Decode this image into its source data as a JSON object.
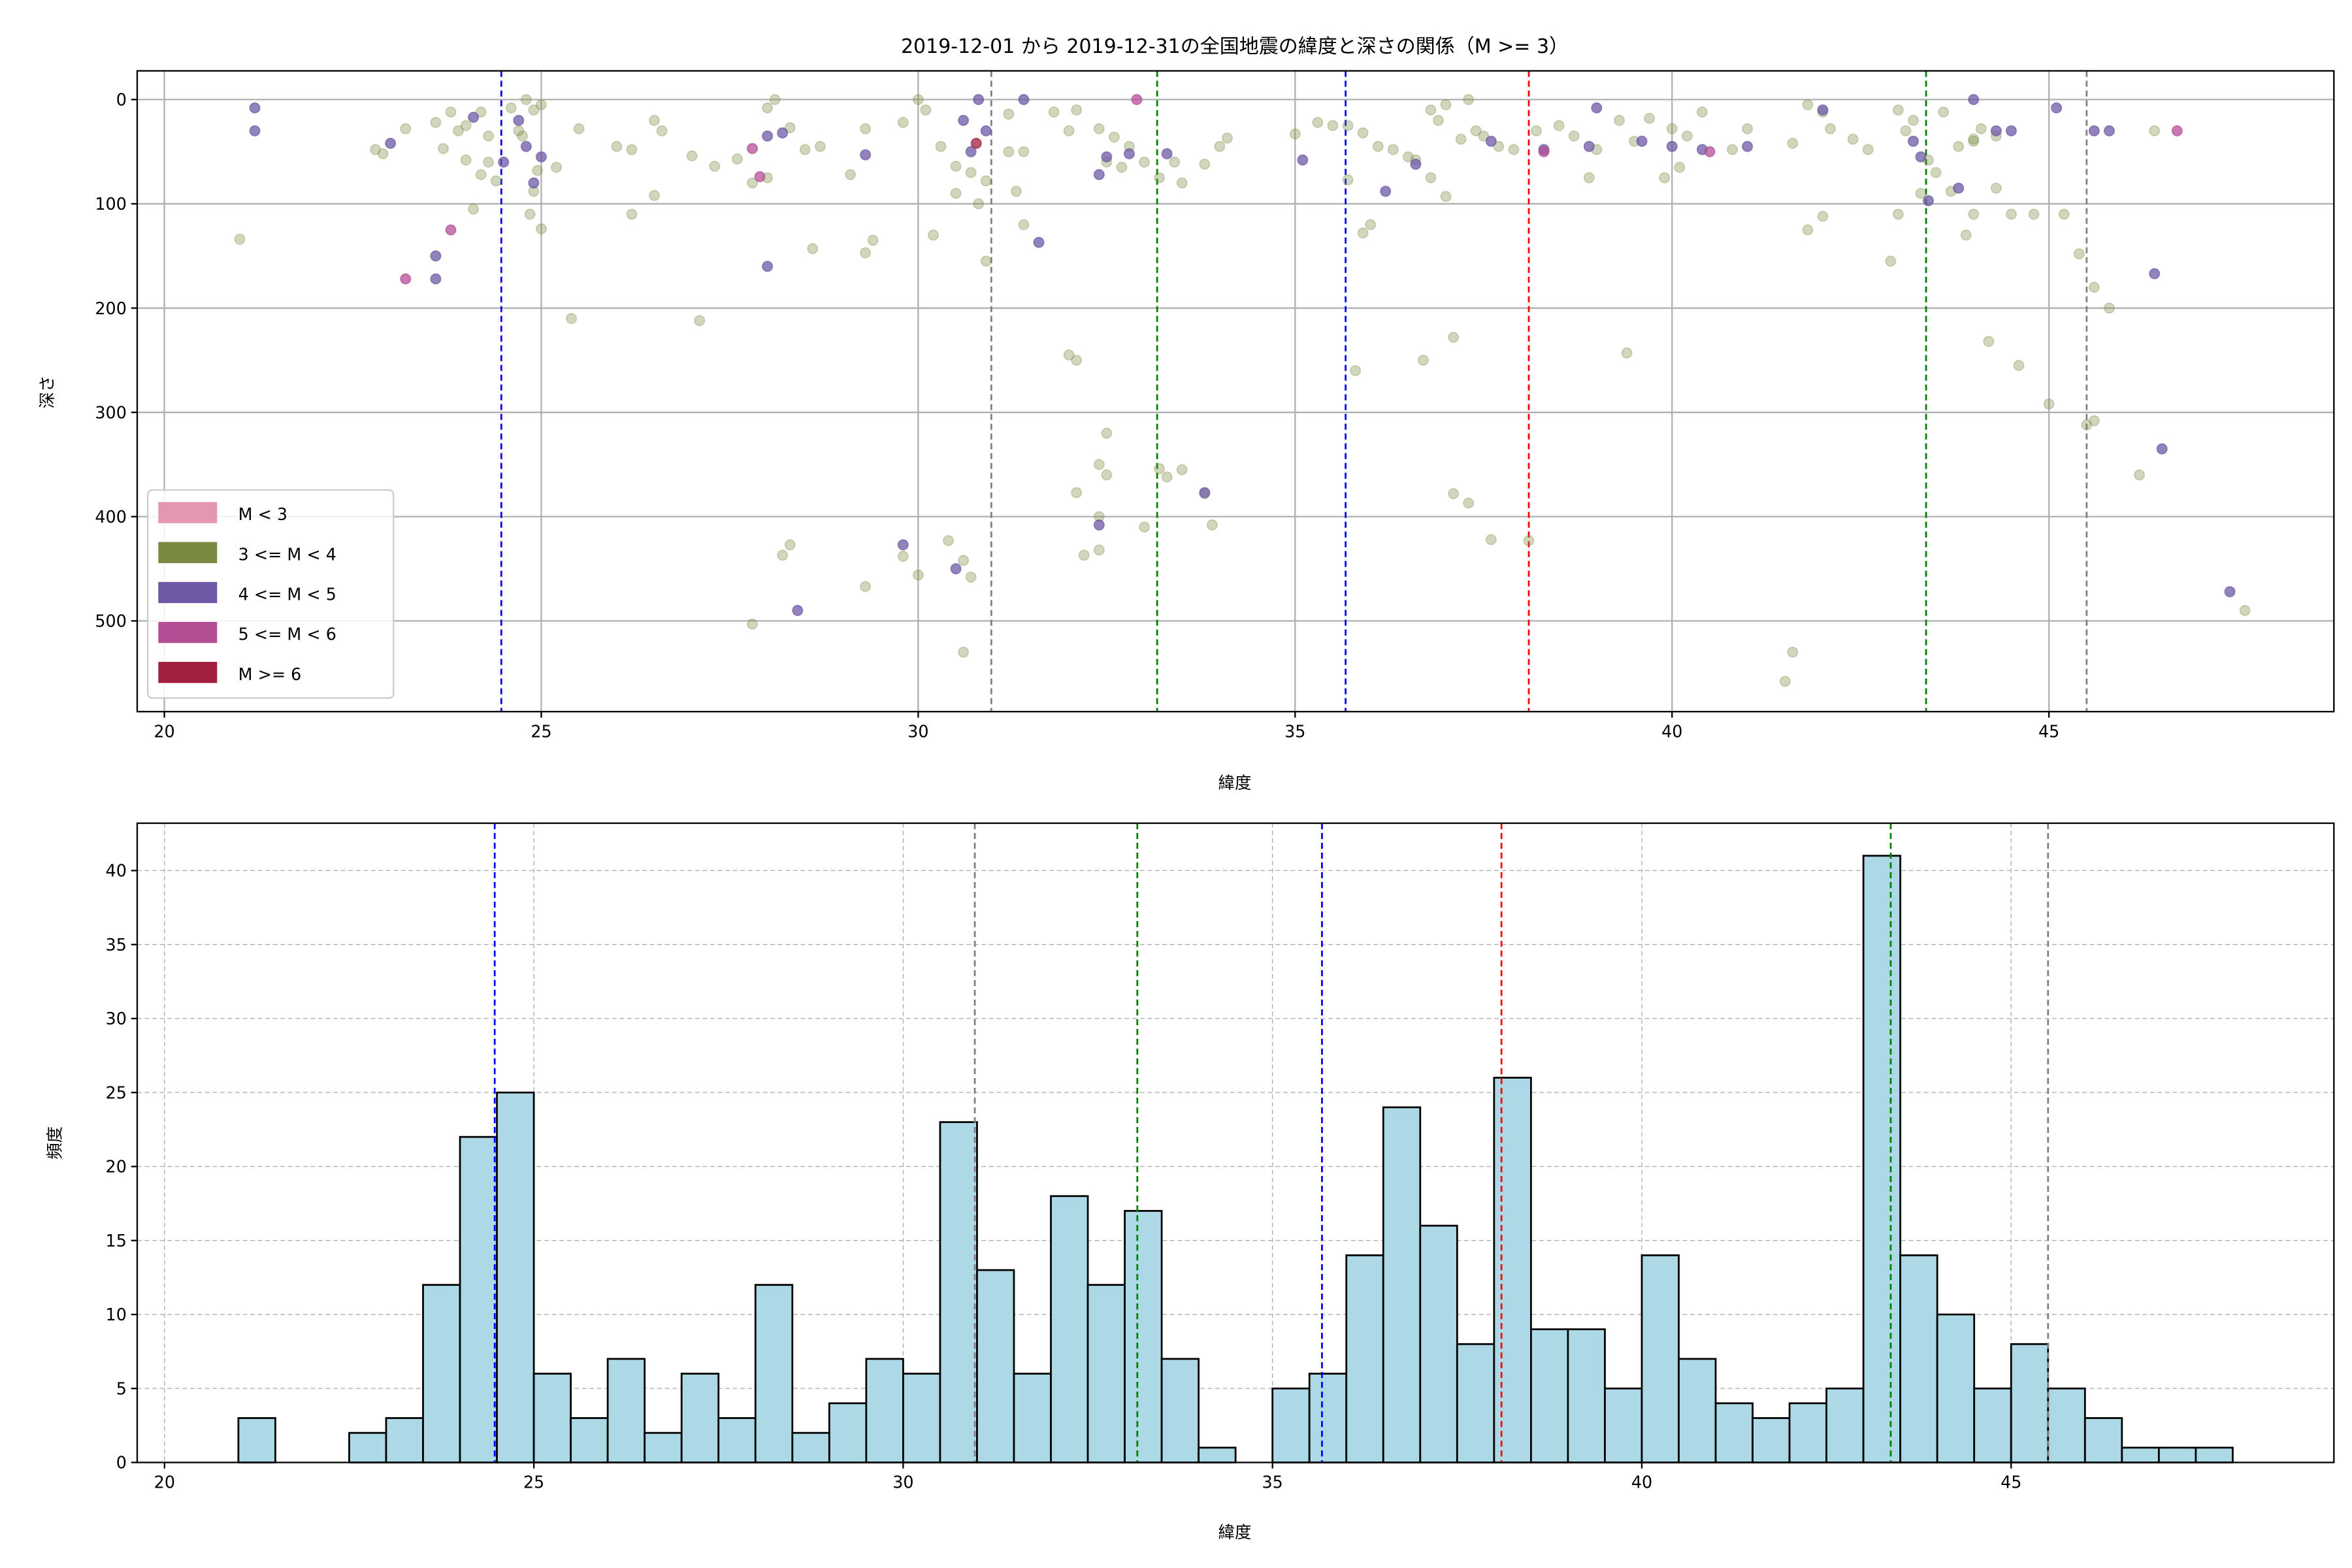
{
  "chart_data": [
    {
      "type": "scatter",
      "title": "2019-12-01 から 2019-12-31の全国地震の緯度と深さの関係（M >= 3）",
      "xlabel": "緯度",
      "ylabel": "深さ",
      "xlim": [
        19.64,
        48.78
      ],
      "ylim": [
        587,
        -27.5
      ],
      "y_inverted": true,
      "xticks": [
        20,
        25,
        30,
        35,
        40,
        45
      ],
      "yticks": [
        0,
        100,
        200,
        300,
        400,
        500
      ],
      "grid": true,
      "legend": {
        "placement": "lower-left",
        "entries": [
          {
            "label": "M < 3",
            "color": "#e597b2"
          },
          {
            "label": "3 <= M < 4",
            "color": "#7a8b41"
          },
          {
            "label": "4 <= M < 5",
            "color": "#6e59a6"
          },
          {
            "label": "5 <= M < 6",
            "color": "#b44f96"
          },
          {
            "label": "M >= 6",
            "color": "#a11f3f"
          }
        ]
      },
      "class_colors": {
        "3": "#7a8b41",
        "4": "#6e59a6",
        "5": "#b44f96",
        "6": "#a11f3f"
      },
      "vlines": [
        {
          "x": 24.47,
          "color": "#0000ff"
        },
        {
          "x": 30.97,
          "color": "#808080"
        },
        {
          "x": 33.17,
          "color": "#008000"
        },
        {
          "x": 35.67,
          "color": "#0000ff"
        },
        {
          "x": 38.1,
          "color": "#ff0000"
        },
        {
          "x": 43.37,
          "color": "#008000"
        },
        {
          "x": 45.5,
          "color": "#808080"
        }
      ],
      "points_lat_depth_class": [
        [
          21.0,
          134,
          3
        ],
        [
          22.8,
          48,
          3
        ],
        [
          22.9,
          52,
          3
        ],
        [
          23.2,
          28,
          3
        ],
        [
          23.6,
          22,
          3
        ],
        [
          23.8,
          12,
          3
        ],
        [
          23.9,
          30,
          3
        ],
        [
          24.0,
          25,
          3
        ],
        [
          24.2,
          12,
          3
        ],
        [
          24.3,
          35,
          3
        ],
        [
          23.7,
          47,
          3
        ],
        [
          24.0,
          58,
          3
        ],
        [
          24.3,
          60,
          3
        ],
        [
          24.2,
          72,
          3
        ],
        [
          24.4,
          78,
          3
        ],
        [
          24.1,
          105,
          3
        ],
        [
          24.6,
          8,
          3
        ],
        [
          24.8,
          0,
          3
        ],
        [
          24.9,
          10,
          3
        ],
        [
          24.7,
          30,
          3
        ],
        [
          24.75,
          35,
          3
        ],
        [
          25.0,
          5,
          3
        ],
        [
          24.95,
          68,
          3
        ],
        [
          24.9,
          88,
          3
        ],
        [
          25.0,
          124,
          3
        ],
        [
          24.85,
          110,
          3
        ],
        [
          25.2,
          65,
          3
        ],
        [
          25.5,
          28,
          3
        ],
        [
          26.0,
          45,
          3
        ],
        [
          26.2,
          48,
          3
        ],
        [
          26.5,
          20,
          3
        ],
        [
          26.6,
          30,
          3
        ],
        [
          26.5,
          92,
          3
        ],
        [
          26.2,
          110,
          3
        ],
        [
          27.0,
          54,
          3
        ],
        [
          27.3,
          64,
          3
        ],
        [
          27.6,
          57,
          3
        ],
        [
          27.8,
          80,
          3
        ],
        [
          28.0,
          8,
          3
        ],
        [
          28.1,
          0,
          3
        ],
        [
          28.0,
          75,
          3
        ],
        [
          28.3,
          27,
          3
        ],
        [
          28.5,
          48,
          3
        ],
        [
          28.7,
          45,
          3
        ],
        [
          29.1,
          72,
          3
        ],
        [
          29.3,
          28,
          3
        ],
        [
          29.8,
          22,
          3
        ],
        [
          30.0,
          0,
          3
        ],
        [
          30.1,
          10,
          3
        ],
        [
          30.3,
          45,
          3
        ],
        [
          30.5,
          64,
          3
        ],
        [
          30.7,
          70,
          3
        ],
        [
          30.9,
          78,
          3
        ],
        [
          30.5,
          90,
          3
        ],
        [
          30.8,
          100,
          3
        ],
        [
          30.2,
          130,
          3
        ],
        [
          30.9,
          155,
          3
        ],
        [
          25.4,
          210,
          3
        ],
        [
          27.1,
          212,
          3
        ],
        [
          28.6,
          143,
          3
        ],
        [
          29.3,
          147,
          3
        ],
        [
          29.4,
          135,
          3
        ],
        [
          31.2,
          14,
          3
        ],
        [
          31.2,
          50,
          3
        ],
        [
          31.4,
          50,
          3
        ],
        [
          31.3,
          88,
          3
        ],
        [
          31.4,
          120,
          3
        ],
        [
          31.8,
          12,
          3
        ],
        [
          32.0,
          30,
          3
        ],
        [
          32.1,
          10,
          3
        ],
        [
          32.4,
          28,
          3
        ],
        [
          32.6,
          36,
          3
        ],
        [
          32.8,
          45,
          3
        ],
        [
          33.0,
          60,
          3
        ],
        [
          33.2,
          75,
          3
        ],
        [
          33.4,
          60,
          3
        ],
        [
          33.5,
          80,
          3
        ],
        [
          33.8,
          62,
          3
        ],
        [
          34.0,
          45,
          3
        ],
        [
          32.5,
          60,
          3
        ],
        [
          32.7,
          65,
          3
        ],
        [
          34.1,
          37,
          3
        ],
        [
          32.0,
          245,
          3
        ],
        [
          32.1,
          250,
          3
        ],
        [
          32.5,
          320,
          3
        ],
        [
          32.4,
          350,
          3
        ],
        [
          32.5,
          360,
          3
        ],
        [
          32.1,
          377,
          3
        ],
        [
          32.4,
          400,
          3
        ],
        [
          32.2,
          437,
          3
        ],
        [
          32.4,
          432,
          3
        ],
        [
          33.2,
          354,
          3
        ],
        [
          33.3,
          362,
          3
        ],
        [
          33.5,
          355,
          3
        ],
        [
          33.8,
          378,
          3
        ],
        [
          33.9,
          408,
          3
        ],
        [
          33.0,
          410,
          3
        ],
        [
          28.2,
          437,
          3
        ],
        [
          28.3,
          427,
          3
        ],
        [
          27.8,
          503,
          3
        ],
        [
          29.3,
          467,
          3
        ],
        [
          29.8,
          438,
          3
        ],
        [
          30.0,
          456,
          3
        ],
        [
          30.4,
          423,
          3
        ],
        [
          30.6,
          442,
          3
        ],
        [
          30.7,
          458,
          3
        ],
        [
          30.6,
          530,
          3
        ],
        [
          35.0,
          33,
          3
        ],
        [
          35.3,
          22,
          3
        ],
        [
          35.5,
          25,
          3
        ],
        [
          35.7,
          25,
          3
        ],
        [
          35.7,
          77,
          3
        ],
        [
          35.9,
          32,
          3
        ],
        [
          36.1,
          45,
          3
        ],
        [
          36.3,
          48,
          3
        ],
        [
          36.5,
          55,
          3
        ],
        [
          36.6,
          58,
          3
        ],
        [
          36.8,
          10,
          3
        ],
        [
          36.9,
          20,
          3
        ],
        [
          37.0,
          5,
          3
        ],
        [
          37.2,
          38,
          3
        ],
        [
          37.3,
          0,
          3
        ],
        [
          37.4,
          30,
          3
        ],
        [
          37.5,
          35,
          3
        ],
        [
          37.7,
          45,
          3
        ],
        [
          37.9,
          48,
          3
        ],
        [
          38.2,
          30,
          3
        ],
        [
          38.5,
          25,
          3
        ],
        [
          38.7,
          35,
          3
        ],
        [
          39.0,
          48,
          3
        ],
        [
          39.3,
          20,
          3
        ],
        [
          39.5,
          40,
          3
        ],
        [
          39.7,
          18,
          3
        ],
        [
          40.0,
          28,
          3
        ],
        [
          40.1,
          65,
          3
        ],
        [
          40.2,
          35,
          3
        ],
        [
          40.4,
          12,
          3
        ],
        [
          40.8,
          48,
          3
        ],
        [
          41.0,
          28,
          3
        ],
        [
          41.6,
          42,
          3
        ],
        [
          41.8,
          5,
          3
        ],
        [
          42.0,
          12,
          3
        ],
        [
          42.1,
          28,
          3
        ],
        [
          42.4,
          38,
          3
        ],
        [
          42.6,
          48,
          3
        ],
        [
          43.0,
          10,
          3
        ],
        [
          43.1,
          30,
          3
        ],
        [
          43.2,
          20,
          3
        ],
        [
          43.4,
          58,
          3
        ],
        [
          43.6,
          12,
          3
        ],
        [
          43.8,
          45,
          3
        ],
        [
          44.0,
          40,
          3
        ],
        [
          44.1,
          28,
          3
        ],
        [
          44.3,
          35,
          3
        ],
        [
          35.9,
          128,
          3
        ],
        [
          36.0,
          120,
          3
        ],
        [
          36.8,
          75,
          3
        ],
        [
          37.0,
          93,
          3
        ],
        [
          38.9,
          75,
          3
        ],
        [
          39.9,
          75,
          3
        ],
        [
          41.8,
          125,
          3
        ],
        [
          42.0,
          112,
          3
        ],
        [
          42.9,
          155,
          3
        ],
        [
          43.0,
          110,
          3
        ],
        [
          43.7,
          88,
          3
        ],
        [
          43.9,
          130,
          3
        ],
        [
          44.0,
          110,
          3
        ],
        [
          44.3,
          85,
          3
        ],
        [
          44.5,
          110,
          3
        ],
        [
          44.8,
          110,
          3
        ],
        [
          45.2,
          110,
          3
        ],
        [
          45.4,
          148,
          3
        ],
        [
          45.6,
          180,
          3
        ],
        [
          45.8,
          200,
          3
        ],
        [
          46.4,
          30,
          3
        ],
        [
          35.8,
          260,
          3
        ],
        [
          36.7,
          250,
          3
        ],
        [
          37.1,
          228,
          3
        ],
        [
          39.4,
          243,
          3
        ],
        [
          37.1,
          378,
          3
        ],
        [
          37.3,
          387,
          3
        ],
        [
          37.6,
          422,
          3
        ],
        [
          38.1,
          423,
          3
        ],
        [
          44.2,
          232,
          3
        ],
        [
          44.6,
          255,
          3
        ],
        [
          45.0,
          292,
          3
        ],
        [
          45.5,
          312,
          3
        ],
        [
          45.6,
          308,
          3
        ],
        [
          46.2,
          360,
          3
        ],
        [
          47.6,
          490,
          3
        ],
        [
          41.6,
          530,
          3
        ],
        [
          41.5,
          558,
          3
        ],
        [
          44.0,
          38,
          3
        ],
        [
          43.5,
          70,
          3
        ],
        [
          43.3,
          90,
          3
        ],
        [
          21.2,
          8,
          4
        ],
        [
          21.2,
          30,
          4
        ],
        [
          23.0,
          42,
          4
        ],
        [
          23.6,
          150,
          4
        ],
        [
          23.6,
          172,
          4
        ],
        [
          24.5,
          60,
          4
        ],
        [
          24.7,
          20,
          4
        ],
        [
          24.8,
          45,
          4
        ],
        [
          25.0,
          55,
          4
        ],
        [
          24.9,
          80,
          4
        ],
        [
          24.1,
          17,
          4
        ],
        [
          28.0,
          35,
          4
        ],
        [
          28.2,
          32,
          4
        ],
        [
          28.0,
          160,
          4
        ],
        [
          29.3,
          53,
          4
        ],
        [
          30.6,
          20,
          4
        ],
        [
          30.8,
          0,
          4
        ],
        [
          30.7,
          50,
          4
        ],
        [
          30.9,
          30,
          4
        ],
        [
          31.4,
          0,
          4
        ],
        [
          31.6,
          137,
          4
        ],
        [
          32.4,
          72,
          4
        ],
        [
          32.5,
          55,
          4
        ],
        [
          32.8,
          52,
          4
        ],
        [
          33.3,
          52,
          4
        ],
        [
          33.8,
          377,
          4
        ],
        [
          29.8,
          427,
          4
        ],
        [
          30.5,
          450,
          4
        ],
        [
          28.4,
          490,
          4
        ],
        [
          32.4,
          408,
          4
        ],
        [
          35.1,
          58,
          4
        ],
        [
          36.2,
          88,
          4
        ],
        [
          36.6,
          62,
          4
        ],
        [
          37.6,
          40,
          4
        ],
        [
          38.3,
          48,
          4
        ],
        [
          38.9,
          45,
          4
        ],
        [
          39.0,
          8,
          4
        ],
        [
          39.6,
          40,
          4
        ],
        [
          40.0,
          45,
          4
        ],
        [
          40.4,
          48,
          4
        ],
        [
          41.0,
          45,
          4
        ],
        [
          42.0,
          10,
          4
        ],
        [
          43.2,
          40,
          4
        ],
        [
          43.3,
          55,
          4
        ],
        [
          43.4,
          97,
          4
        ],
        [
          44.0,
          0,
          4
        ],
        [
          43.8,
          85,
          4
        ],
        [
          44.3,
          30,
          4
        ],
        [
          44.5,
          30,
          4
        ],
        [
          45.1,
          8,
          4
        ],
        [
          45.6,
          30,
          4
        ],
        [
          45.8,
          30,
          4
        ],
        [
          46.4,
          167,
          4
        ],
        [
          46.5,
          335,
          4
        ],
        [
          47.4,
          472,
          4
        ],
        [
          23.2,
          172,
          5
        ],
        [
          23.8,
          125,
          5
        ],
        [
          27.8,
          47,
          5
        ],
        [
          27.9,
          74,
          5
        ],
        [
          32.9,
          0,
          5
        ],
        [
          38.3,
          50,
          5
        ],
        [
          40.5,
          50,
          5
        ],
        [
          46.7,
          30,
          5
        ],
        [
          30.77,
          42,
          6
        ]
      ]
    },
    {
      "type": "bar",
      "subtype": "histogram",
      "xlabel": "緯度",
      "ylabel": "頻度",
      "xlim": [
        19.63,
        49.37
      ],
      "ylim": [
        0,
        43.2
      ],
      "xticks": [
        20,
        25,
        30,
        35,
        40,
        45
      ],
      "yticks": [
        0,
        5,
        10,
        15,
        20,
        25,
        30,
        35,
        40
      ],
      "grid": true,
      "bar_color": "#add8e6",
      "bin_start": 21.0,
      "bin_width": 0.5,
      "values": [
        3,
        0,
        0,
        2,
        3,
        12,
        22,
        25,
        6,
        3,
        7,
        2,
        6,
        3,
        12,
        2,
        4,
        7,
        6,
        23,
        13,
        6,
        18,
        12,
        17,
        7,
        1,
        0,
        5,
        6,
        14,
        24,
        16,
        8,
        26,
        9,
        9,
        5,
        14,
        7,
        4,
        3,
        4,
        5,
        41,
        14,
        10,
        5,
        8,
        5,
        3,
        1,
        1,
        1
      ],
      "vlines": [
        {
          "x": 24.47,
          "color": "#0000ff"
        },
        {
          "x": 30.97,
          "color": "#808080"
        },
        {
          "x": 33.17,
          "color": "#008000"
        },
        {
          "x": 35.67,
          "color": "#0000ff"
        },
        {
          "x": 38.1,
          "color": "#ff0000"
        },
        {
          "x": 43.37,
          "color": "#008000"
        },
        {
          "x": 45.5,
          "color": "#808080"
        }
      ]
    }
  ]
}
